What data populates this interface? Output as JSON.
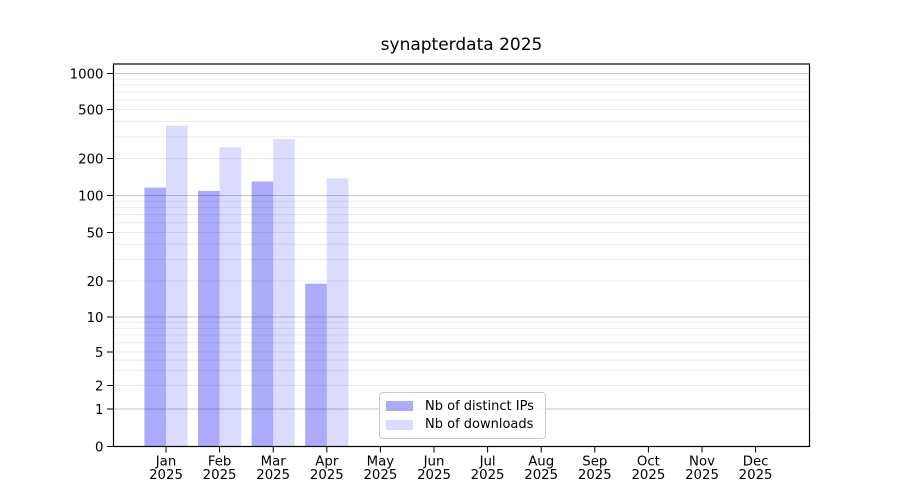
{
  "chart_data": {
    "type": "bar",
    "title": "synapterdata 2025",
    "categories": [
      "Jan 2025",
      "Feb 2025",
      "Mar 2025",
      "Apr 2025",
      "May 2025",
      "Jun 2025",
      "Jul 2025",
      "Aug 2025",
      "Sep 2025",
      "Oct 2025",
      "Nov 2025",
      "Dec 2025"
    ],
    "x_tick_month": [
      "Jan",
      "Feb",
      "Mar",
      "Apr",
      "May",
      "Jun",
      "Jul",
      "Aug",
      "Sep",
      "Oct",
      "Nov",
      "Dec"
    ],
    "x_tick_year": "2025",
    "series": [
      {
        "name": "Nb of distinct IPs",
        "values": [
          116,
          109,
          130,
          19,
          0,
          0,
          0,
          0,
          0,
          0,
          0,
          0
        ],
        "color": "rgba(0,0,240,0.33)"
      },
      {
        "name": "Nb of downloads",
        "values": [
          370,
          247,
          287,
          138,
          0,
          0,
          0,
          0,
          0,
          0,
          0,
          0
        ],
        "color": "rgba(0,0,240,0.14)"
      }
    ],
    "yticks": [
      0,
      1,
      2,
      5,
      10,
      20,
      50,
      100,
      200,
      500,
      1000
    ],
    "yscale": "log-above-1-linear-below",
    "ylim": [
      0,
      1200
    ],
    "xlabel": "",
    "ylabel": "",
    "grid": true,
    "legend_position": "inside-bottom-center",
    "colors": {
      "major_gridline": "#c6c6c6",
      "minor_gridline": "#ececec",
      "axis": "#000000",
      "tick_text": "#000000",
      "background": "#ffffff"
    }
  }
}
